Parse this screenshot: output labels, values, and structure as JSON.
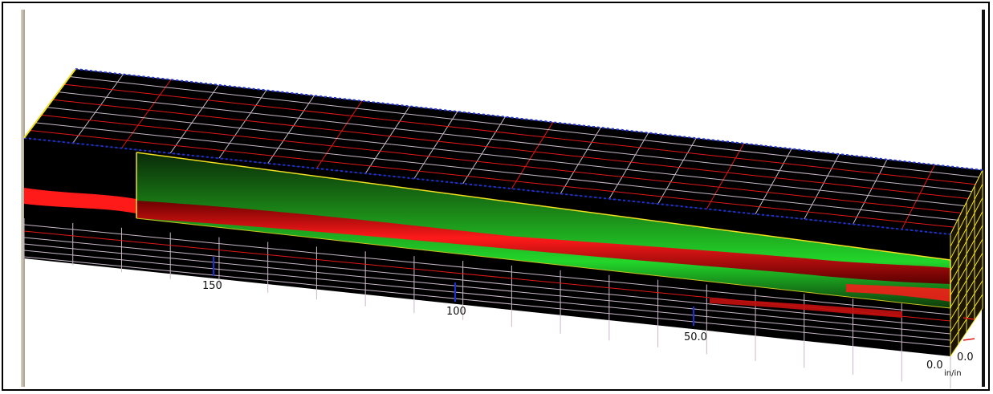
{
  "viewer": {
    "axis_ticks": [
      "150",
      "100",
      "50.0",
      "0.0"
    ],
    "right_tick": "0.0",
    "units": "in/in",
    "colors": {
      "background": "#000000",
      "grid_major": "#c9b8c8",
      "grid_red": "#e01818",
      "outline_blue": "#1a2fd6",
      "outline_yellow": "#f0e020",
      "signal_green": "#22d62a",
      "signal_red": "#ff1a1a"
    }
  }
}
